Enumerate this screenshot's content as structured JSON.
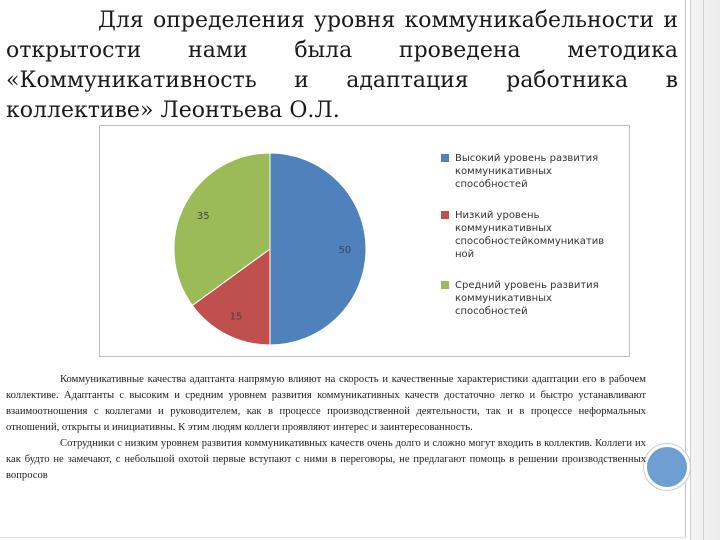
{
  "heading": "Для определения уровня коммуникабельности и открытости нами была проведена методика «Коммуникативность и адаптация работника в коллективе» Леонтьева О.Л.",
  "chart_data": {
    "type": "pie",
    "categories": [
      "Высокий уровень развития коммуникативных способностей",
      "Низкий уровень коммуникативных способностейкоммуникатив ной",
      "Средний уровень развития коммуникативных способностей"
    ],
    "values": [
      50,
      15,
      35
    ],
    "colors": [
      "#4f81bd",
      "#c0504d",
      "#9bbb59"
    ],
    "data_labels": [
      "50",
      "15",
      "35"
    ],
    "legend_position": "right",
    "start_angle": "top",
    "direction": "clockwise"
  },
  "paragraphs": [
    "Коммуникативные качества адаптанта напрямую влияют на скорость и качественные характеристики адаптации его в рабочем коллективе. Адаптанты с высоким и средним уровнем развития коммуникативных качеств достаточно легко и быстро устанавливают взаимоотношения с коллегами и руководителем, как в процессе производственной деятельности, так и в процессе неформальных отношений, открыты и инициативны. К этим людям коллеги проявляют интерес и заинтересованность.",
    "Сотрудники с низким уровнем развития коммуникативных качеств очень долго и сложно могут входить в коллектив. Коллеги их как будто не замечают, с небольшой охотой первые вступают с ними в переговоры, не предлагают помощь в решении производственных вопросов"
  ]
}
